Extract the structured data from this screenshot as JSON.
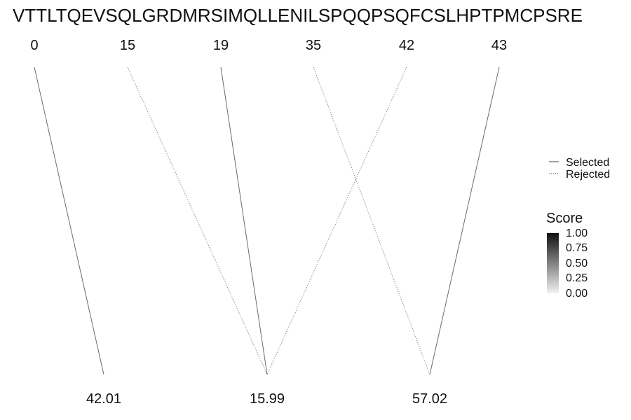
{
  "chart_data": {
    "type": "line",
    "sequence": "VTTLTQEVSQLGRDMRSIMQLLENILSPQQPSQFCSLHPTPMCPSRE",
    "top_positions": [
      "0",
      "15",
      "19",
      "35",
      "42",
      "43"
    ],
    "bottom_values": [
      "42.01",
      "15.99",
      "57.02"
    ],
    "connections": [
      {
        "from": "0",
        "to": "42.01",
        "status": "Selected",
        "score": 0.6
      },
      {
        "from": "15",
        "to": "15.99",
        "status": "Rejected",
        "score": 0.6
      },
      {
        "from": "19",
        "to": "15.99",
        "status": "Selected",
        "score": 0.6
      },
      {
        "from": "35",
        "to": "57.02",
        "status": "Rejected",
        "score": 0.6
      },
      {
        "from": "42",
        "to": "15.99",
        "status": "Rejected",
        "score": 0.6
      },
      {
        "from": "43",
        "to": "57.02",
        "status": "Selected",
        "score": 0.6
      }
    ],
    "legend": {
      "linetype": [
        "Selected",
        "Rejected"
      ],
      "score_title": "Score",
      "score_ticks": [
        "1.00",
        "0.75",
        "0.50",
        "0.25",
        "0.00"
      ],
      "score_range": [
        0,
        1
      ],
      "placement": "right"
    }
  }
}
